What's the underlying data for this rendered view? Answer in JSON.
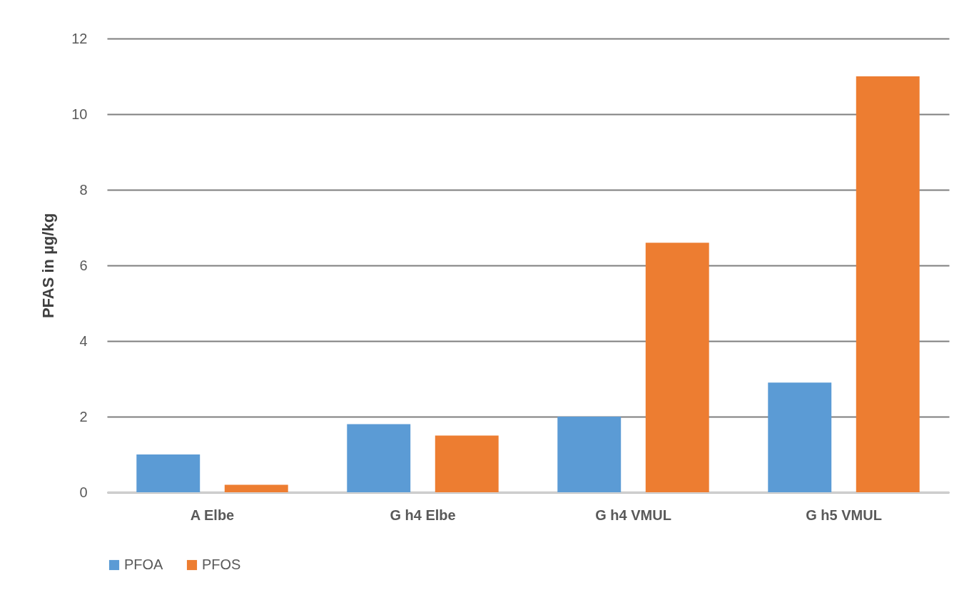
{
  "chart_data": {
    "type": "bar",
    "ylabel": "PFAS in µg/kg",
    "categories": [
      "A Elbe",
      "G h4 Elbe",
      "G h4 VMUL",
      "G h5 VMUL"
    ],
    "series": [
      {
        "name": "PFOA",
        "color": "#5b9bd5",
        "values": [
          1.0,
          1.8,
          2.0,
          2.9
        ]
      },
      {
        "name": "PFOS",
        "color": "#ed7d31",
        "values": [
          0.2,
          1.5,
          6.6,
          11.0
        ]
      }
    ],
    "ylim": [
      0,
      12
    ],
    "yticks": [
      0,
      2,
      4,
      6,
      8,
      10,
      12
    ],
    "grid": "y",
    "legend": "bottom"
  }
}
